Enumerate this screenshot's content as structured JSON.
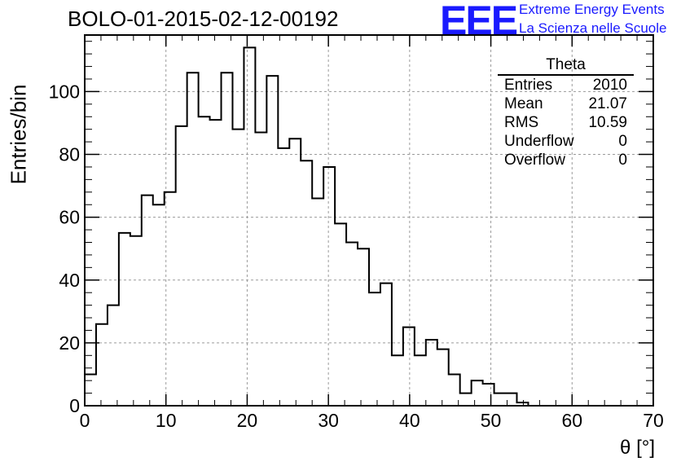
{
  "title": "BOLO-01-2015-02-12-00192",
  "logo": {
    "mark": "EEE",
    "line1": "Extreme Energy Events",
    "line2": "La Scienza nelle Scuole",
    "color": "#1a1aff"
  },
  "stats_box": {
    "name": "Theta",
    "rows": [
      {
        "label": "Entries",
        "value": "2010"
      },
      {
        "label": "Mean",
        "value": "21.07"
      },
      {
        "label": "RMS",
        "value": "10.59"
      },
      {
        "label": "Underflow",
        "value": "0"
      },
      {
        "label": "Overflow",
        "value": "0"
      }
    ]
  },
  "chart_data": {
    "type": "histogram",
    "title": "BOLO-01-2015-02-12-00192",
    "xlabel": "θ [°]",
    "ylabel": "Entries/bin",
    "xlim": [
      0,
      70
    ],
    "ylim": [
      0,
      118
    ],
    "xticks": [
      0,
      10,
      20,
      30,
      40,
      50,
      60,
      70
    ],
    "yticks": [
      0,
      20,
      40,
      60,
      80,
      100
    ],
    "bin_width": 1.4,
    "bin_start": 0,
    "values": [
      10,
      26,
      32,
      55,
      54,
      67,
      64,
      68,
      89,
      106,
      92,
      91,
      106,
      88,
      114,
      87,
      105,
      82,
      85,
      78,
      66,
      76,
      58,
      52,
      50,
      36,
      39,
      16,
      25,
      16,
      21,
      18,
      10,
      4,
      8,
      7,
      4,
      4,
      1,
      0,
      0,
      0,
      0,
      0,
      0,
      0,
      0,
      0,
      0,
      0
    ],
    "grid": true,
    "line_color": "#000000"
  }
}
